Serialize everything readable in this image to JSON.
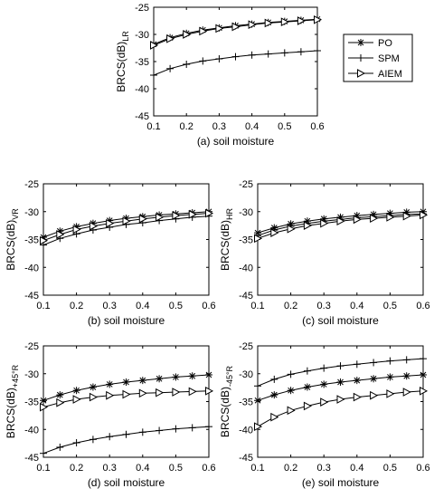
{
  "figure": {
    "legend": {
      "placement": "right of top panel",
      "entries": [
        {
          "label": "PO",
          "marker": "asterisk"
        },
        {
          "label": "SPM",
          "marker": "plus"
        },
        {
          "label": "AIEM",
          "marker": "triangle-right"
        }
      ]
    },
    "line_color": "#000000"
  },
  "chart_data": [
    {
      "type": "line",
      "caption": "(a) soil moisture",
      "ylabel_main": "BRCS(dB)",
      "ylabel_sub": "LR",
      "xlim": [
        0.1,
        0.6
      ],
      "ylim": [
        -45,
        -25
      ],
      "xticks": [
        "0.1",
        "0.2",
        "0.3",
        "0.4",
        "0.5",
        "0.6"
      ],
      "yticks": [
        "-25",
        "-30",
        "-35",
        "-40",
        "-45"
      ],
      "x": [
        0.1,
        0.15,
        0.2,
        0.25,
        0.3,
        0.35,
        0.4,
        0.45,
        0.5,
        0.55,
        0.6
      ],
      "series": [
        {
          "name": "PO",
          "marker": "asterisk",
          "values": [
            -31.8,
            -30.6,
            -29.8,
            -29.2,
            -28.8,
            -28.4,
            -28.1,
            -27.8,
            -27.6,
            -27.4,
            -27.2
          ]
        },
        {
          "name": "SPM",
          "marker": "plus",
          "values": [
            -37.5,
            -36.3,
            -35.5,
            -34.9,
            -34.5,
            -34.1,
            -33.8,
            -33.6,
            -33.4,
            -33.2,
            -33.0
          ]
        },
        {
          "name": "AIEM",
          "marker": "triangle-right",
          "values": [
            -32.0,
            -30.8,
            -30.0,
            -29.4,
            -28.9,
            -28.6,
            -28.2,
            -27.9,
            -27.7,
            -27.5,
            -27.3
          ]
        }
      ]
    },
    {
      "type": "line",
      "caption": "(b) soil moisture",
      "ylabel_main": "BRCS(dB)",
      "ylabel_sub": "VR",
      "xlim": [
        0.1,
        0.6
      ],
      "ylim": [
        -45,
        -25
      ],
      "xticks": [
        "0.1",
        "0.2",
        "0.3",
        "0.4",
        "0.5",
        "0.6"
      ],
      "yticks": [
        "-25",
        "-30",
        "-35",
        "-40",
        "-45"
      ],
      "x": [
        0.1,
        0.15,
        0.2,
        0.25,
        0.3,
        0.35,
        0.4,
        0.45,
        0.5,
        0.55,
        0.6
      ],
      "series": [
        {
          "name": "PO",
          "marker": "asterisk",
          "values": [
            -34.6,
            -33.5,
            -32.7,
            -32.1,
            -31.6,
            -31.2,
            -30.9,
            -30.6,
            -30.4,
            -30.2,
            -30.0
          ]
        },
        {
          "name": "SPM",
          "marker": "plus",
          "values": [
            -36.0,
            -34.8,
            -34.0,
            -33.3,
            -32.8,
            -32.3,
            -32.0,
            -31.6,
            -31.3,
            -31.0,
            -30.8
          ]
        },
        {
          "name": "AIEM",
          "marker": "triangle-right",
          "values": [
            -35.2,
            -34.1,
            -33.2,
            -32.6,
            -32.1,
            -31.7,
            -31.3,
            -31.0,
            -30.7,
            -30.5,
            -30.3
          ]
        }
      ]
    },
    {
      "type": "line",
      "caption": "(c) soil moisture",
      "ylabel_main": "BRCS(dB)",
      "ylabel_sub": "HR",
      "xlim": [
        0.1,
        0.6
      ],
      "ylim": [
        -45,
        -25
      ],
      "xticks": [
        "0.1",
        "0.2",
        "0.3",
        "0.4",
        "0.5",
        "0.6"
      ],
      "yticks": [
        "-25",
        "-30",
        "-35",
        "-40",
        "-45"
      ],
      "x": [
        0.1,
        0.15,
        0.2,
        0.25,
        0.3,
        0.35,
        0.4,
        0.45,
        0.5,
        0.55,
        0.6
      ],
      "series": [
        {
          "name": "PO",
          "marker": "asterisk",
          "values": [
            -33.8,
            -32.9,
            -32.2,
            -31.7,
            -31.3,
            -31.0,
            -30.7,
            -30.5,
            -30.3,
            -30.1,
            -30.0
          ]
        },
        {
          "name": "SPM",
          "marker": "plus",
          "values": [
            -34.3,
            -33.3,
            -32.6,
            -32.1,
            -31.7,
            -31.4,
            -31.1,
            -30.9,
            -30.7,
            -30.5,
            -30.4
          ]
        },
        {
          "name": "AIEM",
          "marker": "triangle-right",
          "values": [
            -34.8,
            -33.8,
            -33.1,
            -32.5,
            -32.1,
            -31.7,
            -31.4,
            -31.2,
            -31.0,
            -30.8,
            -30.6
          ]
        }
      ]
    },
    {
      "type": "line",
      "caption": "(d) soil moisture",
      "ylabel_main": "BRCS(dB)",
      "ylabel_sub": "+45°R",
      "xlim": [
        0.1,
        0.6
      ],
      "ylim": [
        -45,
        -25
      ],
      "xticks": [
        "0.1",
        "0.2",
        "0.3",
        "0.4",
        "0.5",
        "0.6"
      ],
      "yticks": [
        "-25",
        "-30",
        "-35",
        "-40",
        "-45"
      ],
      "x": [
        0.1,
        0.15,
        0.2,
        0.25,
        0.3,
        0.35,
        0.4,
        0.45,
        0.5,
        0.55,
        0.6
      ],
      "series": [
        {
          "name": "PO",
          "marker": "asterisk",
          "values": [
            -34.8,
            -33.8,
            -33.0,
            -32.4,
            -31.9,
            -31.5,
            -31.2,
            -30.9,
            -30.6,
            -30.4,
            -30.2
          ]
        },
        {
          "name": "SPM",
          "marker": "plus",
          "values": [
            -44.3,
            -43.2,
            -42.4,
            -41.8,
            -41.3,
            -40.9,
            -40.5,
            -40.2,
            -39.9,
            -39.7,
            -39.5
          ]
        },
        {
          "name": "AIEM",
          "marker": "triangle-right",
          "values": [
            -36.0,
            -35.2,
            -34.6,
            -34.2,
            -33.9,
            -33.7,
            -33.5,
            -33.4,
            -33.3,
            -33.2,
            -33.1
          ]
        }
      ]
    },
    {
      "type": "line",
      "caption": "(e) soil moisture",
      "ylabel_main": "BRCS(dB)",
      "ylabel_sub": "-45°R",
      "xlim": [
        0.1,
        0.6
      ],
      "ylim": [
        -45,
        -25
      ],
      "xticks": [
        "0.1",
        "0.2",
        "0.3",
        "0.4",
        "0.5",
        "0.6"
      ],
      "yticks": [
        "-25",
        "-30",
        "-35",
        "-40",
        "-45"
      ],
      "x": [
        0.1,
        0.15,
        0.2,
        0.25,
        0.3,
        0.35,
        0.4,
        0.45,
        0.5,
        0.55,
        0.6
      ],
      "series": [
        {
          "name": "PO",
          "marker": "asterisk",
          "values": [
            -34.8,
            -33.8,
            -33.0,
            -32.4,
            -31.9,
            -31.5,
            -31.2,
            -30.9,
            -30.6,
            -30.4,
            -30.2
          ]
        },
        {
          "name": "SPM",
          "marker": "plus",
          "values": [
            -32.2,
            -31.0,
            -30.1,
            -29.5,
            -29.0,
            -28.6,
            -28.3,
            -28.0,
            -27.7,
            -27.5,
            -27.3
          ]
        },
        {
          "name": "AIEM",
          "marker": "triangle-right",
          "values": [
            -39.5,
            -37.8,
            -36.6,
            -35.8,
            -35.1,
            -34.6,
            -34.2,
            -33.9,
            -33.6,
            -33.3,
            -33.1
          ]
        }
      ]
    }
  ]
}
